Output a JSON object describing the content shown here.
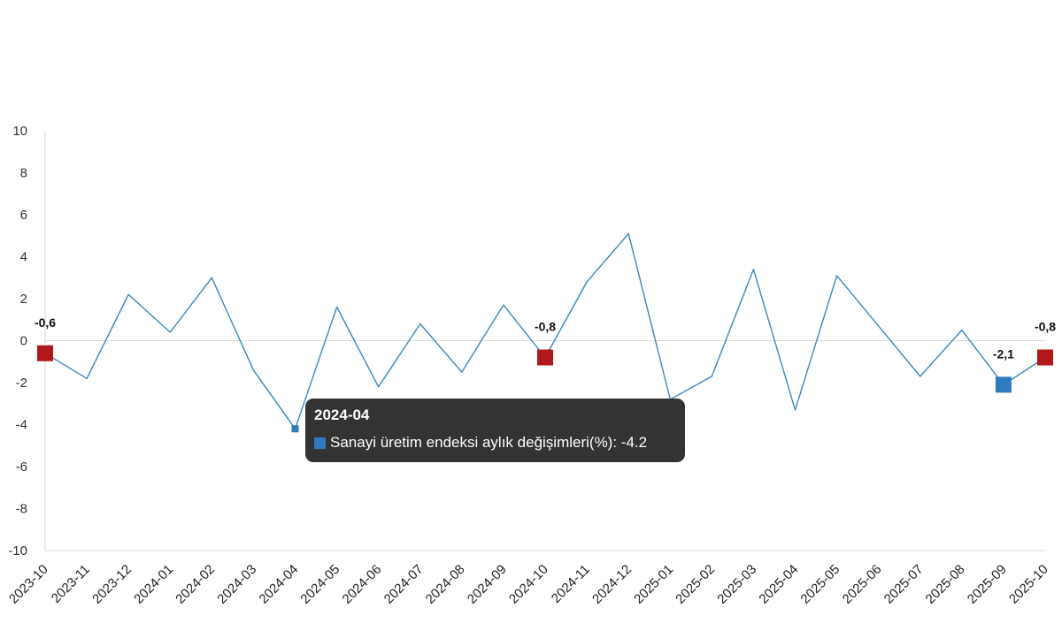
{
  "chart_data": {
    "type": "line",
    "categories": [
      "2023-10",
      "2023-11",
      "2023-12",
      "2024-01",
      "2024-02",
      "2024-03",
      "2024-04",
      "2024-05",
      "2024-06",
      "2024-07",
      "2024-08",
      "2024-09",
      "2024-10",
      "2024-11",
      "2024-12",
      "2025-01",
      "2025-02",
      "2025-03",
      "2025-04",
      "2025-05",
      "2025-06",
      "2025-07",
      "2025-08",
      "2025-09",
      "2025-10"
    ],
    "series": [
      {
        "name": "Sanayi üretim endeksi aylık değişimleri(%)",
        "values": [
          -0.6,
          -1.8,
          2.2,
          0.4,
          3.0,
          -1.4,
          -4.2,
          1.6,
          -2.2,
          0.8,
          -1.5,
          1.7,
          -0.8,
          2.8,
          5.1,
          -2.8,
          -1.7,
          3.4,
          -3.3,
          3.1,
          0.7,
          -1.7,
          0.5,
          -2.1,
          -0.8
        ]
      }
    ],
    "ylim": [
      -10,
      10
    ],
    "yticks": [
      -10,
      -8,
      -6,
      -4,
      -2,
      0,
      2,
      4,
      6,
      8,
      10
    ],
    "ytick_labels": [
      "-10",
      "-8",
      "-6",
      "-4",
      "-2",
      "0",
      "2",
      "4",
      "6",
      "8",
      "10"
    ],
    "line_color": "#3a87bf",
    "highlight_red_color": "#b0181c",
    "highlight_blue_color": "#2f7bbd",
    "highlighted_points": [
      {
        "index": 0,
        "label": "-0,6",
        "color": "red"
      },
      {
        "index": 12,
        "label": "-0,8",
        "color": "red"
      },
      {
        "index": 23,
        "label": "-2,1",
        "color": "blue"
      },
      {
        "index": 24,
        "label": "-0,8",
        "color": "red"
      }
    ],
    "hovered_index": 6,
    "grid": false,
    "zero_line": true
  },
  "tooltip": {
    "title": "2024-04",
    "series_label": "Sanayi üretim endeksi aylık değişimleri(%)",
    "value": "-4.2",
    "text": "Sanayi üretim endeksi aylık değişimleri(%): -4.2",
    "swatch_color": "#2f7bbd"
  }
}
